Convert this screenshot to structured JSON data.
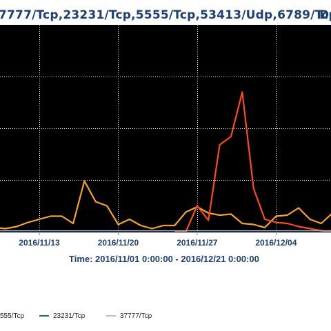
{
  "header": {
    "title_ports": "7777/Tcp,23231/Tcp,5555/Tcp,53413/Udp,6789/Tcp",
    "title_tail": "De"
  },
  "time_range": "Time: 2016/11/01 0:00:00 - 2016/12/21 0:00:00",
  "colors": {
    "background": "#000000",
    "grid": "#ffffff",
    "text": "#1d3f73"
  },
  "legend": [
    {
      "label": "555/Tcp",
      "color": "#cccccc"
    },
    {
      "label": "23231/Tcp",
      "color": "#1f5fa6"
    },
    {
      "label": "37777/Tcp",
      "color": "#bdbdbd"
    }
  ],
  "chart_data": {
    "type": "line",
    "title": "7777/Tcp,23231/Tcp,5555/Tcp,53413/Udp,6789/Tcp",
    "xlabel": "Time: 2016/11/01 0:00:00 - 2016/12/21 0:00:00",
    "ylabel": "",
    "x_tick_labels": [
      "2016/11/13",
      "2016/11/20",
      "2016/11/27",
      "2016/12/04"
    ],
    "x_tick_dates": [
      "2016-11-13",
      "2016-11-20",
      "2016-11-27",
      "2016-12-04"
    ],
    "x_visible_range": [
      "2016-11-09",
      "2016-12-09"
    ],
    "ylim": [
      0,
      10
    ],
    "y_grid_values": [
      2.5,
      5.0,
      7.5
    ],
    "grid": true,
    "background": "black",
    "series": [
      {
        "name": "",
        "color": "#f5a623",
        "x": [
          "2016-11-09",
          "2016-11-10",
          "2016-11-11",
          "2016-11-12",
          "2016-11-13",
          "2016-11-14",
          "2016-11-15",
          "2016-11-16",
          "2016-11-17",
          "2016-11-18",
          "2016-11-19",
          "2016-11-20",
          "2016-11-21",
          "2016-11-22",
          "2016-11-23",
          "2016-11-24",
          "2016-11-25",
          "2016-11-26",
          "2016-11-27",
          "2016-11-28",
          "2016-11-29",
          "2016-11-30",
          "2016-12-01",
          "2016-12-02",
          "2016-12-03",
          "2016-12-04",
          "2016-12-05",
          "2016-12-06",
          "2016-12-07",
          "2016-12-08",
          "2016-12-09"
        ],
        "values": [
          0.2,
          0.15,
          0.25,
          0.45,
          0.6,
          0.75,
          0.75,
          0.4,
          2.45,
          1.45,
          1.25,
          0.35,
          0.6,
          0.3,
          0.15,
          0.3,
          0.3,
          0.95,
          1.2,
          0.9,
          0.8,
          0.85,
          0.4,
          0.35,
          0.2,
          0.75,
          0.8,
          1.15,
          0.6,
          0.4,
          0.9
        ]
      },
      {
        "name": "",
        "color": "#ff4a1c",
        "x": [
          "2016-11-25",
          "2016-11-26",
          "2016-11-27",
          "2016-11-28",
          "2016-11-29",
          "2016-11-30",
          "2016-12-01",
          "2016-12-02",
          "2016-12-03",
          "2016-12-04",
          "2016-12-05",
          "2016-12-06",
          "2016-12-07",
          "2016-12-08",
          "2016-12-09"
        ],
        "values": [
          0.0,
          0.0,
          1.25,
          0.55,
          4.2,
          4.6,
          6.75,
          2.1,
          0.6,
          0.45,
          0.4,
          0.25,
          0.15,
          0.05,
          0.0
        ]
      },
      {
        "name": "",
        "color": "#8fb4e0",
        "x": [
          "2016-11-09",
          "2016-11-16",
          "2016-11-23",
          "2016-11-30",
          "2016-12-07",
          "2016-12-09"
        ],
        "values": [
          0.05,
          0.05,
          0.05,
          0.05,
          0.05,
          0.05
        ]
      }
    ]
  }
}
